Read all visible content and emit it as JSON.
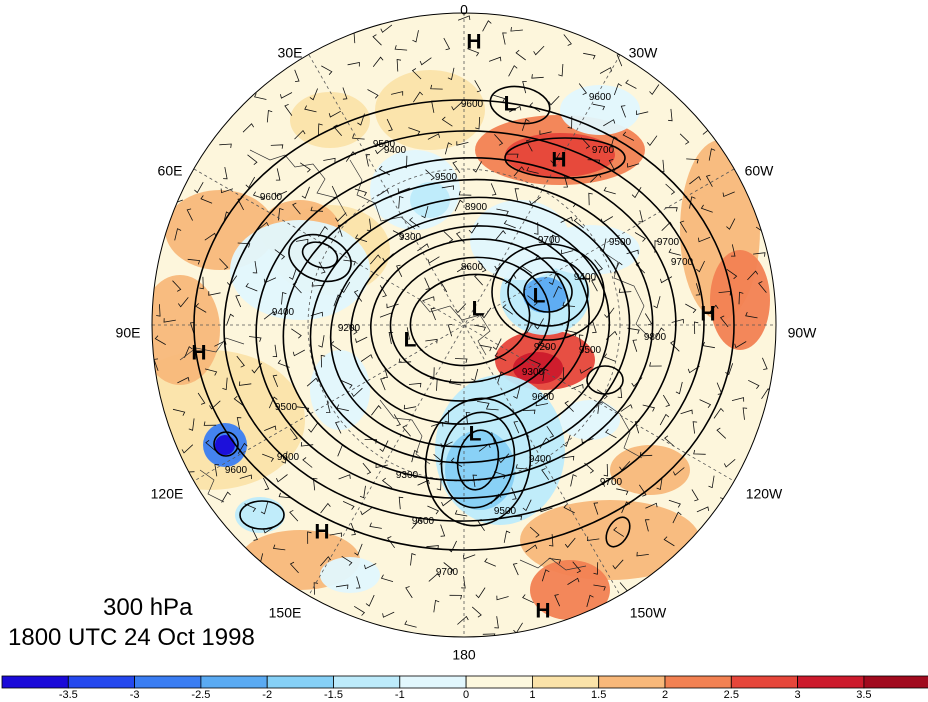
{
  "map": {
    "level": "300 hPa",
    "valid_time": "1800 UTC 24 Oct 1998",
    "longitude_labels": [
      "0",
      "30W",
      "60W",
      "90W",
      "120W",
      "150W",
      "180",
      "150E",
      "120E",
      "90E",
      "60E",
      "30E"
    ],
    "centers": [
      {
        "label": "H"
      },
      {
        "label": "H"
      },
      {
        "label": "H"
      },
      {
        "label": "H"
      },
      {
        "label": "H"
      },
      {
        "label": "H"
      },
      {
        "label": "L"
      },
      {
        "label": "L"
      },
      {
        "label": "L"
      },
      {
        "label": "L"
      },
      {
        "label": "L"
      }
    ],
    "contour_labels": [
      "9600",
      "9600",
      "9700",
      "9500",
      "9600",
      "9500",
      "9700",
      "9400",
      "8900",
      "8600",
      "9200",
      "9300",
      "9500",
      "9200",
      "9400",
      "9500",
      "9600",
      "9300",
      "9400",
      "9500",
      "9600",
      "9700",
      "9700",
      "9600",
      "9700",
      "9800",
      "9700",
      "9400",
      "9500",
      "9600",
      "9300"
    ],
    "colorbar": {
      "tick_labels": [
        "-3.5",
        "-3",
        "-2.5",
        "-2",
        "-1.5",
        "-1",
        "0",
        "1",
        "1.5",
        "2",
        "2.5",
        "3",
        "3.5"
      ],
      "colors": [
        "#1a0ad8",
        "#2448ee",
        "#3a7df2",
        "#5aaaf2",
        "#86d0f6",
        "#bdebfb",
        "#e2f7fd",
        "#fdf8de",
        "#fbe3a9",
        "#f8b87a",
        "#f28152",
        "#e6463a",
        "#cc1a2c",
        "#a10a1e"
      ]
    }
  }
}
